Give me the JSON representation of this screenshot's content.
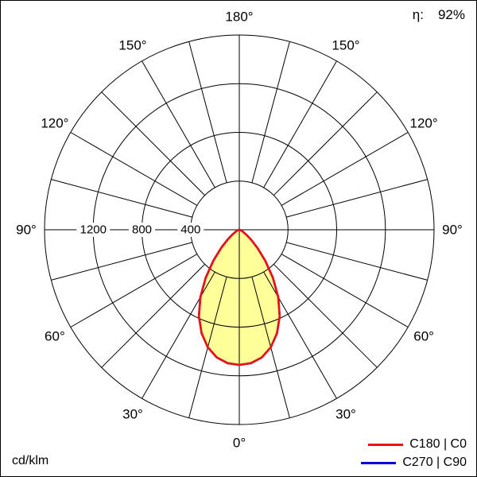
{
  "header": {
    "efficiency_label": "η:",
    "efficiency_value": "92%"
  },
  "footer": {
    "unit_label": "cd/klm"
  },
  "legend": {
    "items": [
      {
        "label": "C180 | C0",
        "color": "#ee1111"
      },
      {
        "label": "C270 | C90",
        "color": "#0000dd"
      }
    ]
  },
  "chart_data": {
    "type": "polar",
    "unit": "cd/klm",
    "efficiency_percent": 92,
    "r_max": 1600,
    "radial_rings": [
      400,
      800,
      1200,
      1600
    ],
    "radial_tick_labels": [
      "400",
      "800",
      "1200"
    ],
    "angle_grid_step_deg": 15,
    "angle_labels": [
      "0°",
      "30°",
      "60°",
      "90°",
      "120°",
      "150°",
      "180°"
    ],
    "grid_color": "#000000",
    "series": [
      {
        "name": "C180 | C0",
        "color": "#ee1111",
        "fill_color": "#ffff99",
        "symmetric": true,
        "gamma_deg": [
          0,
          5,
          10,
          15,
          20,
          25,
          30,
          35,
          40,
          45,
          50,
          55,
          60,
          65,
          70,
          75,
          80,
          85,
          90
        ],
        "values_cd_per_klm": [
          1110,
          1100,
          1065,
          1000,
          905,
          785,
          640,
          480,
          330,
          210,
          125,
          70,
          40,
          25,
          15,
          8,
          4,
          2,
          0
        ]
      },
      {
        "name": "C270 | C90",
        "color": "#0000dd",
        "fill_color": "none",
        "symmetric": true,
        "gamma_deg": [
          0,
          5,
          10,
          15,
          20,
          25,
          30,
          35,
          40,
          45,
          50,
          55,
          60,
          65,
          70,
          75,
          80,
          85,
          90
        ],
        "values_cd_per_klm": [
          1110,
          1100,
          1065,
          1000,
          905,
          785,
          640,
          480,
          330,
          210,
          125,
          70,
          40,
          25,
          15,
          8,
          4,
          2,
          0
        ]
      }
    ]
  }
}
